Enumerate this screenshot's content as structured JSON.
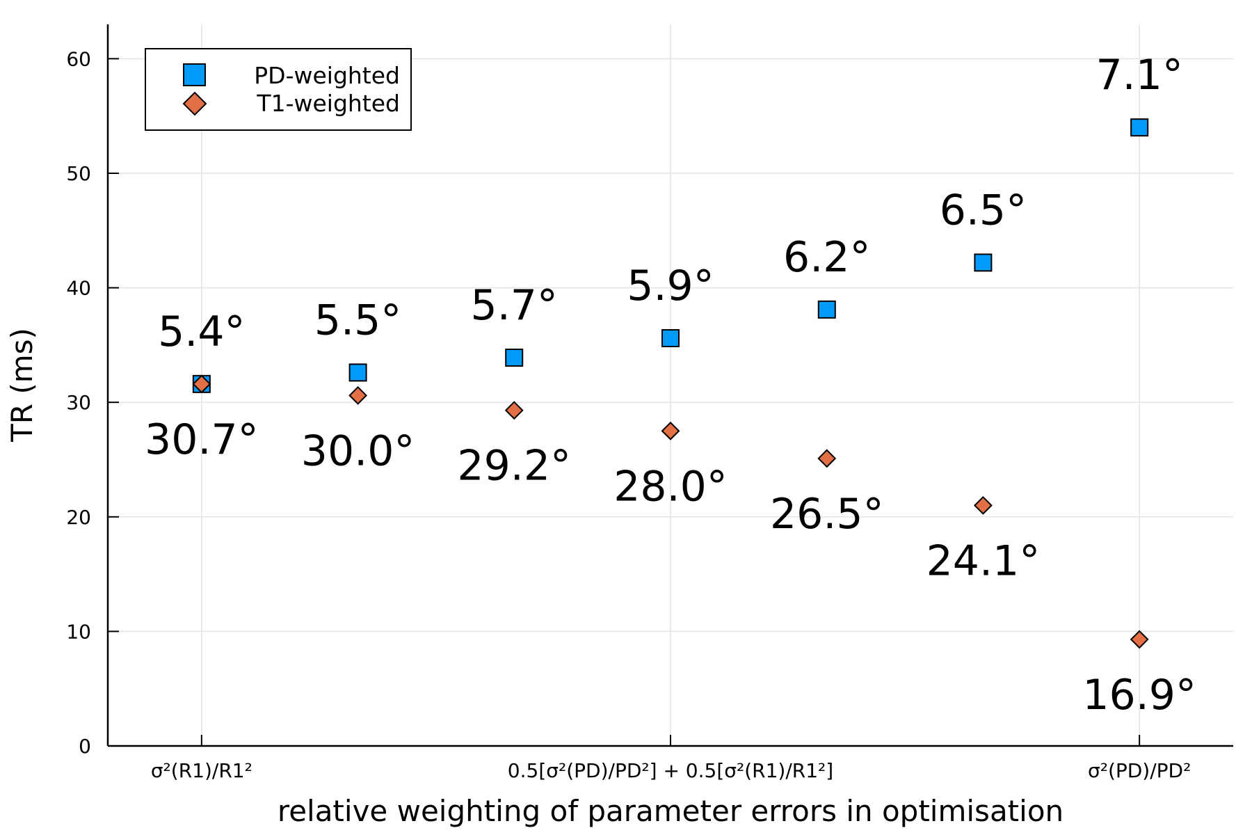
{
  "chart_data": {
    "type": "scatter",
    "xlabel": "relative weighting of parameter errors in optimisation",
    "ylabel": "TR (ms)",
    "xlim": [
      -0.1,
      1.1
    ],
    "ylim": [
      0,
      63
    ],
    "yticks": [
      0,
      10,
      20,
      30,
      40,
      50,
      60
    ],
    "xticks": [
      {
        "value": 0,
        "label": "σ²(R1)/R1²"
      },
      {
        "value": 0.5,
        "label": "0.5[σ²(PD)/PD²] + 0.5[σ²(R1)/R1²]"
      },
      {
        "value": 1,
        "label": "σ²(PD)/PD²"
      }
    ],
    "grid": true,
    "legend_position": "top-left",
    "series": [
      {
        "name": "PD-weighted",
        "marker": "square",
        "color": "#009af9",
        "x": [
          0,
          0.1667,
          0.3333,
          0.5,
          0.6667,
          0.8333,
          1
        ],
        "y": [
          31.6,
          32.6,
          33.9,
          35.6,
          38.1,
          42.2,
          54.0
        ],
        "labels": [
          "5.4°",
          "5.5°",
          "5.7°",
          "5.9°",
          "6.2°",
          "6.5°",
          "7.1°"
        ]
      },
      {
        "name": "T1-weighted",
        "marker": "diamond",
        "color": "#e26f46",
        "x": [
          0,
          0.1667,
          0.3333,
          0.5,
          0.6667,
          0.8333,
          1
        ],
        "y": [
          31.6,
          30.6,
          29.3,
          27.5,
          25.1,
          21.0,
          9.3
        ],
        "labels": [
          "30.7°",
          "30.0°",
          "29.2°",
          "28.0°",
          "26.5°",
          "24.1°",
          "16.9°"
        ]
      }
    ]
  }
}
